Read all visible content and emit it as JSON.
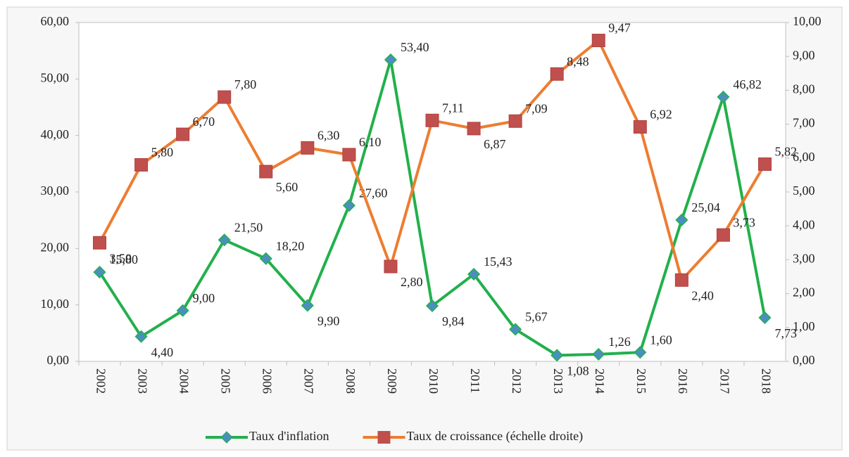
{
  "chart_data": {
    "type": "line",
    "categories": [
      "2002",
      "2003",
      "2004",
      "2005",
      "2006",
      "2007",
      "2008",
      "2009",
      "2010",
      "2011",
      "2012",
      "2013",
      "2014",
      "2015",
      "2016",
      "2017",
      "2018"
    ],
    "series": [
      {
        "name": "Taux d'inflation",
        "color": "#22b04b",
        "marker_color": "#4a8fc0",
        "axis": "y",
        "values": [
          15.8,
          4.4,
          9.0,
          21.5,
          18.2,
          9.9,
          27.6,
          53.4,
          9.84,
          15.43,
          5.67,
          1.08,
          1.26,
          1.6,
          25.04,
          46.82,
          7.73
        ],
        "value_labels": [
          "15,80",
          "4,40",
          "9,00",
          "21,50",
          "18,20",
          "9,90",
          "27,60",
          "53,40",
          "9,84",
          "15,43",
          "5,67",
          "1,08",
          "1,26",
          "1,60",
          "25,04",
          "46,82",
          "7,73"
        ]
      },
      {
        "name": "Taux de croissance (échelle droite)",
        "color": "#ed7d31",
        "marker_color": "#c0504d",
        "axis": "y2",
        "values": [
          3.5,
          5.8,
          6.7,
          7.8,
          5.6,
          6.3,
          6.1,
          2.8,
          7.11,
          6.87,
          7.09,
          8.48,
          9.47,
          6.92,
          2.4,
          3.73,
          5.82
        ],
        "value_labels": [
          "3,50",
          "5,80",
          "6,70",
          "7,80",
          "5,60",
          "6,30",
          "6,10",
          "2,80",
          "7,11",
          "6,87",
          "7,09",
          "8,48",
          "9,47",
          "6,92",
          "2,40",
          "3,73",
          "5,82"
        ]
      }
    ],
    "ylim": [
      0,
      60
    ],
    "yticks": [
      {
        "value": 0,
        "label": "0,00"
      },
      {
        "value": 10,
        "label": "10,00"
      },
      {
        "value": 20,
        "label": "20,00"
      },
      {
        "value": 30,
        "label": "30,00"
      },
      {
        "value": 40,
        "label": "40,00"
      },
      {
        "value": 50,
        "label": "50,00"
      },
      {
        "value": 60,
        "label": "60,00"
      }
    ],
    "y2lim": [
      0,
      10
    ],
    "y2ticks": [
      {
        "value": 0,
        "label": "0,00"
      },
      {
        "value": 1,
        "label": "1,00"
      },
      {
        "value": 2,
        "label": "2,00"
      },
      {
        "value": 3,
        "label": "3,00"
      },
      {
        "value": 4,
        "label": "4,00"
      },
      {
        "value": 5,
        "label": "5,00"
      },
      {
        "value": 6,
        "label": "6,00"
      },
      {
        "value": 7,
        "label": "7,00"
      },
      {
        "value": 8,
        "label": "8,00"
      },
      {
        "value": 9,
        "label": "9,00"
      },
      {
        "value": 10,
        "label": "10,00"
      }
    ],
    "legend": "bottom"
  }
}
